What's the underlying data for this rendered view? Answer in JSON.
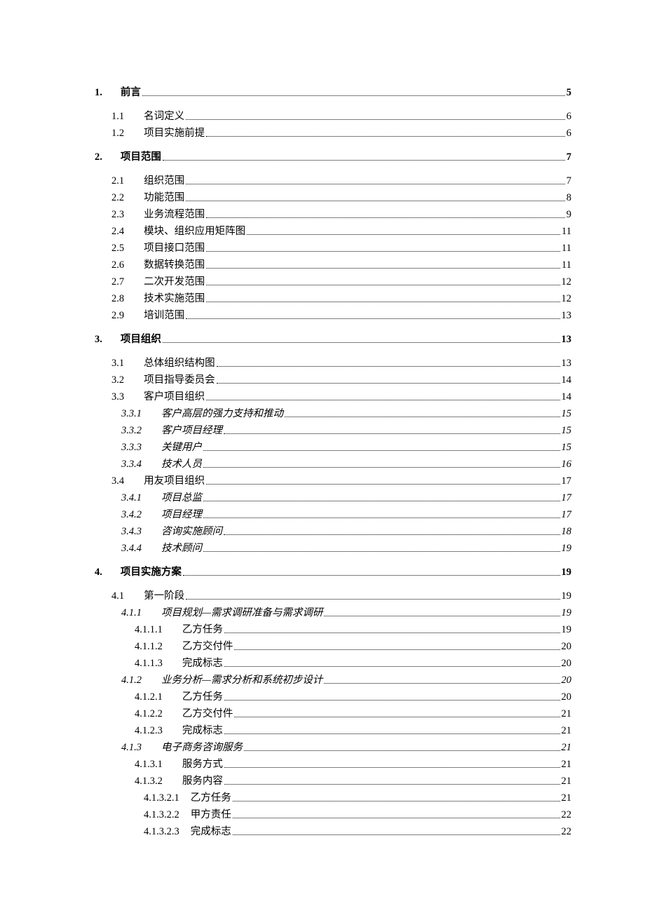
{
  "toc": [
    {
      "lvl": 1,
      "bold": true,
      "italic": false,
      "gap": "big",
      "num": "1.",
      "title": "前言",
      "page": "5"
    },
    {
      "lvl": 2,
      "bold": false,
      "italic": false,
      "gap": "big",
      "num": "1.1",
      "title": "名词定义",
      "page": "6"
    },
    {
      "lvl": 2,
      "bold": false,
      "italic": false,
      "gap": "small",
      "num": "1.2",
      "title": "项目实施前提",
      "page": "6"
    },
    {
      "lvl": 1,
      "bold": true,
      "italic": false,
      "gap": "big",
      "num": "2.",
      "title": "项目范围",
      "page": "7"
    },
    {
      "lvl": 2,
      "bold": false,
      "italic": false,
      "gap": "big",
      "num": "2.1",
      "title": "组织范围",
      "page": "7"
    },
    {
      "lvl": 2,
      "bold": false,
      "italic": false,
      "gap": "small",
      "num": "2.2",
      "title": "功能范围",
      "page": "8"
    },
    {
      "lvl": 2,
      "bold": false,
      "italic": false,
      "gap": "small",
      "num": "2.3",
      "title": "业务流程范围",
      "page": "9"
    },
    {
      "lvl": 2,
      "bold": false,
      "italic": false,
      "gap": "small",
      "num": "2.4",
      "title": "模块、组织应用矩阵图",
      "page": "11"
    },
    {
      "lvl": 2,
      "bold": false,
      "italic": false,
      "gap": "small",
      "num": "2.5",
      "title": "项目接口范围",
      "page": "11"
    },
    {
      "lvl": 2,
      "bold": false,
      "italic": false,
      "gap": "small",
      "num": "2.6",
      "title": "数据转换范围",
      "page": "11"
    },
    {
      "lvl": 2,
      "bold": false,
      "italic": false,
      "gap": "small",
      "num": "2.7",
      "title": "二次开发范围",
      "page": "12"
    },
    {
      "lvl": 2,
      "bold": false,
      "italic": false,
      "gap": "small",
      "num": "2.8",
      "title": "技术实施范围",
      "page": "12"
    },
    {
      "lvl": 2,
      "bold": false,
      "italic": false,
      "gap": "small",
      "num": "2.9",
      "title": "培训范围",
      "page": "13"
    },
    {
      "lvl": 1,
      "bold": true,
      "italic": false,
      "gap": "big",
      "num": "3.",
      "title": "项目组织",
      "page": "13"
    },
    {
      "lvl": 2,
      "bold": false,
      "italic": false,
      "gap": "big",
      "num": "3.1",
      "title": "总体组织结构图",
      "page": "13"
    },
    {
      "lvl": 2,
      "bold": false,
      "italic": false,
      "gap": "small",
      "num": "3.2",
      "title": "项目指导委员会",
      "page": "14"
    },
    {
      "lvl": 2,
      "bold": false,
      "italic": false,
      "gap": "small",
      "num": "3.3",
      "title": "客户项目组织",
      "page": "14"
    },
    {
      "lvl": 3,
      "bold": false,
      "italic": true,
      "gap": "small",
      "num": "3.3.1",
      "title": "客户高层的强力支持和推动",
      "page": "15"
    },
    {
      "lvl": 3,
      "bold": false,
      "italic": true,
      "gap": "small",
      "num": "3.3.2",
      "title": "客户项目经理",
      "page": "15"
    },
    {
      "lvl": 3,
      "bold": false,
      "italic": true,
      "gap": "small",
      "num": "3.3.3",
      "title": "关键用户",
      "page": "15"
    },
    {
      "lvl": 3,
      "bold": false,
      "italic": true,
      "gap": "small",
      "num": "3.3.4",
      "title": "技术人员",
      "page": "16"
    },
    {
      "lvl": 2,
      "bold": false,
      "italic": false,
      "gap": "small",
      "num": "3.4",
      "title": "用友项目组织",
      "page": "17"
    },
    {
      "lvl": 3,
      "bold": false,
      "italic": true,
      "gap": "small",
      "num": "3.4.1",
      "title": "项目总监",
      "page": "17"
    },
    {
      "lvl": 3,
      "bold": false,
      "italic": true,
      "gap": "small",
      "num": "3.4.2",
      "title": "项目经理",
      "page": "17"
    },
    {
      "lvl": 3,
      "bold": false,
      "italic": true,
      "gap": "small",
      "num": "3.4.3",
      "title": "咨询实施顾问",
      "page": "18"
    },
    {
      "lvl": 3,
      "bold": false,
      "italic": true,
      "gap": "small",
      "num": "3.4.4",
      "title": "技术顾问",
      "page": "19"
    },
    {
      "lvl": 1,
      "bold": true,
      "italic": false,
      "gap": "big",
      "num": "4.",
      "title": "项目实施方案",
      "page": "19"
    },
    {
      "lvl": 2,
      "bold": false,
      "italic": false,
      "gap": "big",
      "num": "4.1",
      "title": "第一阶段",
      "page": "19"
    },
    {
      "lvl": 3,
      "bold": false,
      "italic": true,
      "gap": "small",
      "num": "4.1.1",
      "title": "项目规划—需求调研准备与需求调研",
      "page": "19"
    },
    {
      "lvl": 4,
      "bold": false,
      "italic": false,
      "gap": "small",
      "num": "4.1.1.1",
      "title": "乙方任务",
      "page": "19"
    },
    {
      "lvl": 4,
      "bold": false,
      "italic": false,
      "gap": "small",
      "num": "4.1.1.2",
      "title": "乙方交付件",
      "page": "20"
    },
    {
      "lvl": 4,
      "bold": false,
      "italic": false,
      "gap": "small",
      "num": "4.1.1.3",
      "title": "完成标志",
      "page": "20"
    },
    {
      "lvl": 3,
      "bold": false,
      "italic": true,
      "gap": "small",
      "num": "4.1.2",
      "title": "业务分析—需求分析和系统初步设计",
      "page": "20"
    },
    {
      "lvl": 4,
      "bold": false,
      "italic": false,
      "gap": "small",
      "num": "4.1.2.1",
      "title": "乙方任务",
      "page": "20"
    },
    {
      "lvl": 4,
      "bold": false,
      "italic": false,
      "gap": "small",
      "num": "4.1.2.2",
      "title": "乙方交付件",
      "page": "21"
    },
    {
      "lvl": 4,
      "bold": false,
      "italic": false,
      "gap": "small",
      "num": "4.1.2.3",
      "title": "完成标志",
      "page": "21"
    },
    {
      "lvl": 3,
      "bold": false,
      "italic": true,
      "gap": "small",
      "num": "4.1.3",
      "title": "电子商务咨询服务",
      "page": "21"
    },
    {
      "lvl": 4,
      "bold": false,
      "italic": false,
      "gap": "small",
      "num": "4.1.3.1",
      "title": "服务方式",
      "page": "21"
    },
    {
      "lvl": 4,
      "bold": false,
      "italic": false,
      "gap": "small",
      "num": "4.1.3.2",
      "title": "服务内容",
      "page": "21"
    },
    {
      "lvl": 5,
      "bold": false,
      "italic": false,
      "gap": "small",
      "num": "4.1.3.2.1",
      "title": "乙方任务",
      "page": "21"
    },
    {
      "lvl": 5,
      "bold": false,
      "italic": false,
      "gap": "small",
      "num": "4.1.3.2.2",
      "title": "甲方责任",
      "page": "22"
    },
    {
      "lvl": 5,
      "bold": false,
      "italic": false,
      "gap": "small",
      "num": "4.1.3.2.3",
      "title": "完成标志",
      "page": "22"
    }
  ]
}
